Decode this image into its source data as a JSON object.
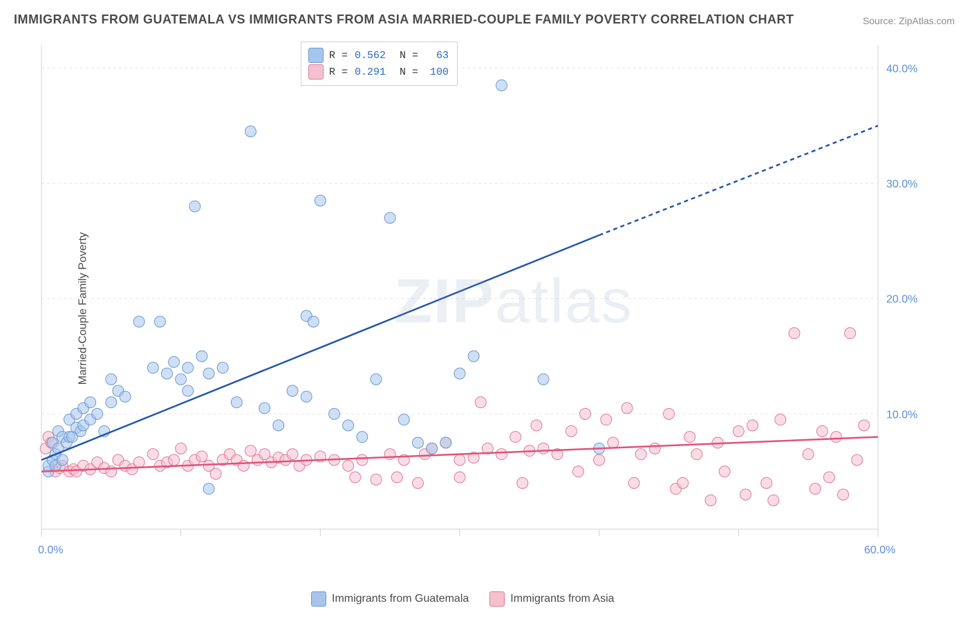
{
  "title": "IMMIGRANTS FROM GUATEMALA VS IMMIGRANTS FROM ASIA MARRIED-COUPLE FAMILY POVERTY CORRELATION CHART",
  "source_label": "Source: ",
  "source_value": "ZipAtlas.com",
  "ylabel": "Married-Couple Family Poverty",
  "watermark": "ZIPatlas",
  "chart": {
    "type": "scatter",
    "background_color": "#ffffff",
    "grid_color": "#e5e5e5",
    "grid_dash": "4,4",
    "axis_color": "#d0d0d0",
    "xlim": [
      0,
      60
    ],
    "ylim": [
      0,
      42
    ],
    "xtick_major": [
      0,
      60
    ],
    "xtick_minor": [
      10,
      20,
      30,
      40,
      50
    ],
    "xtick_labels": {
      "0": "0.0%",
      "60": "60.0%"
    },
    "ytick_values": [
      10,
      20,
      30,
      40
    ],
    "ytick_labels": {
      "10": "10.0%",
      "20": "20.0%",
      "30": "30.0%",
      "40": "40.0%"
    },
    "tick_label_color": "#5b8dd6",
    "tick_label_fontsize": 16,
    "marker_radius": 8,
    "marker_opacity": 0.55,
    "series": [
      {
        "id": "guatemala",
        "label": "Immigrants from Guatemala",
        "color_fill": "#a7c5ec",
        "color_stroke": "#6b9bd1",
        "line_color": "#2456a8",
        "line_width": 2.5,
        "R": "0.562",
        "N": "63",
        "trend": {
          "x1": 0,
          "y1": 6.0,
          "x2": 40,
          "y2": 25.5,
          "x2_ext": 60,
          "y2_ext": 35.0
        },
        "points": [
          [
            0.5,
            5.0
          ],
          [
            0.5,
            5.5
          ],
          [
            0.8,
            6.0
          ],
          [
            0.8,
            7.5
          ],
          [
            1.0,
            5.5
          ],
          [
            1.0,
            6.5
          ],
          [
            1.2,
            7.0
          ],
          [
            1.2,
            8.5
          ],
          [
            1.5,
            6.0
          ],
          [
            1.5,
            8.0
          ],
          [
            1.8,
            7.5
          ],
          [
            2.0,
            8.0
          ],
          [
            2.0,
            9.5
          ],
          [
            2.2,
            8.0
          ],
          [
            2.5,
            8.8
          ],
          [
            2.5,
            10.0
          ],
          [
            2.8,
            8.5
          ],
          [
            3.0,
            9.0
          ],
          [
            3.0,
            10.5
          ],
          [
            3.5,
            9.5
          ],
          [
            3.5,
            11.0
          ],
          [
            4.0,
            10.0
          ],
          [
            4.5,
            8.5
          ],
          [
            5.0,
            11.0
          ],
          [
            5.0,
            13.0
          ],
          [
            5.5,
            12.0
          ],
          [
            6.0,
            11.5
          ],
          [
            7.0,
            18.0
          ],
          [
            8.0,
            14.0
          ],
          [
            8.5,
            18.0
          ],
          [
            9.0,
            13.5
          ],
          [
            9.5,
            14.5
          ],
          [
            10.0,
            13.0
          ],
          [
            10.5,
            12.0
          ],
          [
            10.5,
            14.0
          ],
          [
            11.0,
            28.0
          ],
          [
            11.5,
            15.0
          ],
          [
            12.0,
            13.5
          ],
          [
            12.0,
            3.5
          ],
          [
            13.0,
            14.0
          ],
          [
            14.0,
            11.0
          ],
          [
            15.0,
            34.5
          ],
          [
            16.0,
            10.5
          ],
          [
            17.0,
            9.0
          ],
          [
            18.0,
            12.0
          ],
          [
            19.0,
            18.5
          ],
          [
            19.0,
            11.5
          ],
          [
            19.5,
            18.0
          ],
          [
            20.0,
            28.5
          ],
          [
            21.0,
            10.0
          ],
          [
            22.0,
            9.0
          ],
          [
            23.0,
            8.0
          ],
          [
            24.0,
            13.0
          ],
          [
            25.0,
            27.0
          ],
          [
            26.0,
            9.5
          ],
          [
            27.0,
            7.5
          ],
          [
            28.0,
            7.0
          ],
          [
            29.0,
            7.5
          ],
          [
            30.0,
            13.5
          ],
          [
            31.0,
            15.0
          ],
          [
            33.0,
            38.5
          ],
          [
            36.0,
            13.0
          ],
          [
            40.0,
            7.0
          ]
        ]
      },
      {
        "id": "asia",
        "label": "Immigrants from Asia",
        "color_fill": "#f5c0cf",
        "color_stroke": "#e07a9a",
        "line_color": "#e0527a",
        "line_width": 2.5,
        "R": "0.291",
        "N": "100",
        "trend": {
          "x1": 0,
          "y1": 5.0,
          "x2": 60,
          "y2": 8.0
        },
        "points": [
          [
            0.3,
            7.0
          ],
          [
            0.5,
            8.0
          ],
          [
            0.7,
            7.5
          ],
          [
            1.0,
            5.0
          ],
          [
            1.3,
            5.3
          ],
          [
            1.5,
            5.5
          ],
          [
            2.0,
            5.0
          ],
          [
            2.3,
            5.2
          ],
          [
            2.5,
            5.0
          ],
          [
            3.0,
            5.5
          ],
          [
            3.5,
            5.2
          ],
          [
            4.0,
            5.8
          ],
          [
            4.5,
            5.3
          ],
          [
            5.0,
            5.0
          ],
          [
            5.5,
            6.0
          ],
          [
            6.0,
            5.5
          ],
          [
            6.5,
            5.2
          ],
          [
            7.0,
            5.8
          ],
          [
            8.0,
            6.5
          ],
          [
            8.5,
            5.5
          ],
          [
            9.0,
            5.8
          ],
          [
            9.5,
            6.0
          ],
          [
            10.0,
            7.0
          ],
          [
            10.5,
            5.5
          ],
          [
            11.0,
            6.0
          ],
          [
            11.5,
            6.3
          ],
          [
            12.0,
            5.5
          ],
          [
            12.5,
            4.8
          ],
          [
            13.0,
            6.0
          ],
          [
            13.5,
            6.5
          ],
          [
            14.0,
            6.0
          ],
          [
            14.5,
            5.5
          ],
          [
            15.0,
            6.8
          ],
          [
            15.5,
            6.0
          ],
          [
            16.0,
            6.5
          ],
          [
            16.5,
            5.8
          ],
          [
            17.0,
            6.2
          ],
          [
            17.5,
            6.0
          ],
          [
            18.0,
            6.5
          ],
          [
            18.5,
            5.5
          ],
          [
            19.0,
            6.0
          ],
          [
            20.0,
            6.3
          ],
          [
            21.0,
            6.0
          ],
          [
            22.0,
            5.5
          ],
          [
            22.5,
            4.5
          ],
          [
            23.0,
            6.0
          ],
          [
            24.0,
            4.3
          ],
          [
            25.0,
            6.5
          ],
          [
            25.5,
            4.5
          ],
          [
            26.0,
            6.0
          ],
          [
            27.0,
            4.0
          ],
          [
            27.5,
            6.5
          ],
          [
            28.0,
            7.0
          ],
          [
            29.0,
            7.5
          ],
          [
            30.0,
            6.0
          ],
          [
            30.0,
            4.5
          ],
          [
            31.0,
            6.2
          ],
          [
            31.5,
            11.0
          ],
          [
            32.0,
            7.0
          ],
          [
            33.0,
            6.5
          ],
          [
            34.0,
            8.0
          ],
          [
            34.5,
            4.0
          ],
          [
            35.0,
            6.8
          ],
          [
            35.5,
            9.0
          ],
          [
            36.0,
            7.0
          ],
          [
            37.0,
            6.5
          ],
          [
            38.0,
            8.5
          ],
          [
            38.5,
            5.0
          ],
          [
            39.0,
            10.0
          ],
          [
            40.0,
            6.0
          ],
          [
            40.5,
            9.5
          ],
          [
            41.0,
            7.5
          ],
          [
            42.0,
            10.5
          ],
          [
            42.5,
            4.0
          ],
          [
            43.0,
            6.5
          ],
          [
            44.0,
            7.0
          ],
          [
            45.0,
            10.0
          ],
          [
            45.5,
            3.5
          ],
          [
            46.0,
            4.0
          ],
          [
            46.5,
            8.0
          ],
          [
            47.0,
            6.5
          ],
          [
            48.0,
            2.5
          ],
          [
            48.5,
            7.5
          ],
          [
            49.0,
            5.0
          ],
          [
            50.0,
            8.5
          ],
          [
            50.5,
            3.0
          ],
          [
            51.0,
            9.0
          ],
          [
            52.0,
            4.0
          ],
          [
            52.5,
            2.5
          ],
          [
            53.0,
            9.5
          ],
          [
            54.0,
            17.0
          ],
          [
            55.0,
            6.5
          ],
          [
            55.5,
            3.5
          ],
          [
            56.0,
            8.5
          ],
          [
            56.5,
            4.5
          ],
          [
            57.0,
            8.0
          ],
          [
            57.5,
            3.0
          ],
          [
            58.0,
            17.0
          ],
          [
            58.5,
            6.0
          ],
          [
            59.0,
            9.0
          ]
        ]
      }
    ]
  },
  "legend": {
    "bg": "#ffffff",
    "border": "#d0d0d0",
    "R_label": "R =",
    "N_label": "N ="
  },
  "bottom_legend": {
    "items": [
      {
        "id": "guatemala",
        "label": "Immigrants from Guatemala"
      },
      {
        "id": "asia",
        "label": "Immigrants from Asia"
      }
    ]
  }
}
